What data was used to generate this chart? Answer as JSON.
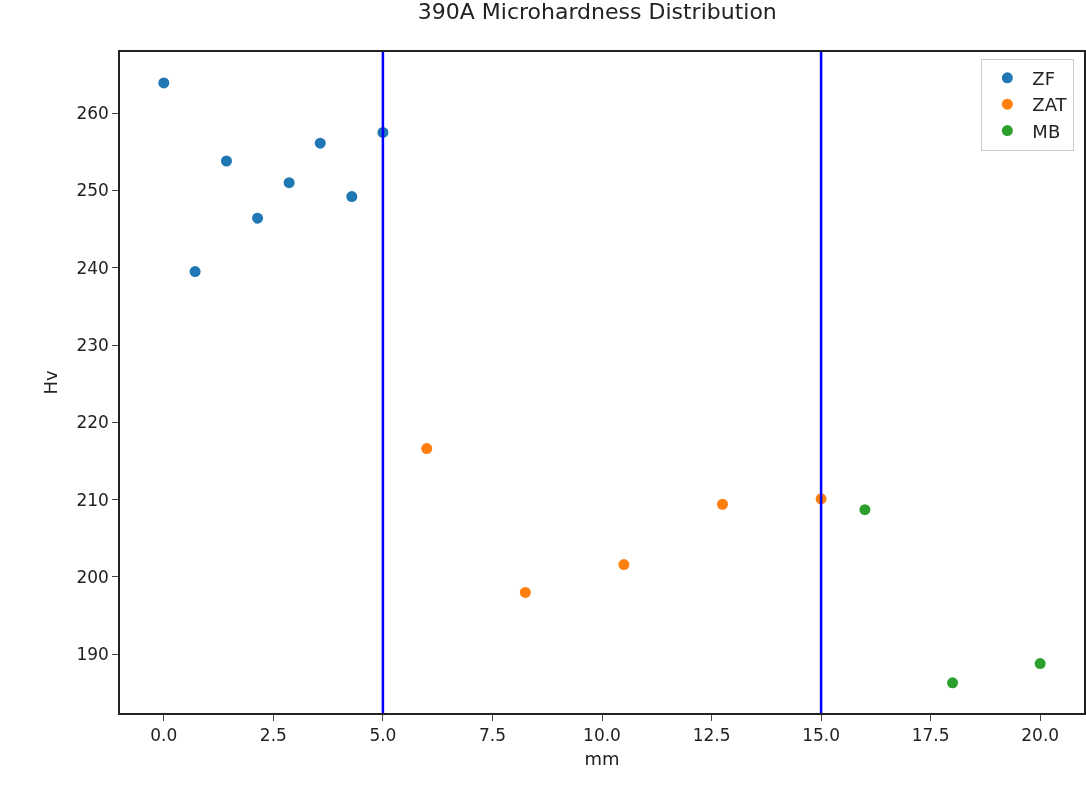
{
  "chart_data": {
    "type": "scatter",
    "title": "390A Microhardness Distribution",
    "xlabel": "mm",
    "ylabel": "Hv",
    "series": [
      {
        "name": "ZF",
        "color": "#1f77b4",
        "x": [
          0,
          0.714,
          1.43,
          2.14,
          2.86,
          3.57,
          4.29,
          5
        ],
        "values": [
          263.9,
          239.5,
          253.8,
          246.4,
          251.0,
          256.1,
          249.2,
          257.5
        ]
      },
      {
        "name": "ZAT",
        "color": "#ff7f0e",
        "x": [
          6,
          8.25,
          10.5,
          12.75,
          15
        ],
        "values": [
          216.6,
          198.0,
          201.6,
          209.4,
          210.1
        ]
      },
      {
        "name": "MB",
        "color": "#2ca02c",
        "x": [
          16,
          18,
          20
        ],
        "values": [
          208.7,
          186.3,
          188.8
        ]
      }
    ],
    "xlim": [
      -1,
      21
    ],
    "xticks": [
      {
        "value": 0,
        "label": "0.0"
      },
      {
        "value": 2.5,
        "label": "2.5"
      },
      {
        "value": 5,
        "label": "5.0"
      },
      {
        "value": 7.5,
        "label": "7.5"
      },
      {
        "value": 10,
        "label": "10.0"
      },
      {
        "value": 12.5,
        "label": "12.5"
      },
      {
        "value": 15,
        "label": "15.0"
      },
      {
        "value": 17.5,
        "label": "17.5"
      },
      {
        "value": 20,
        "label": "20.0"
      }
    ],
    "ylim": [
      182.4,
      267.9
    ],
    "yticks": [
      190,
      200,
      210,
      220,
      230,
      240,
      250,
      260
    ],
    "ref_lines": [
      {
        "axis": "x",
        "value": 5,
        "color": "#0000ff"
      },
      {
        "axis": "x",
        "value": 15,
        "color": "#0000ff"
      }
    ],
    "grid": false,
    "legend": "top right",
    "marker": "circle"
  }
}
